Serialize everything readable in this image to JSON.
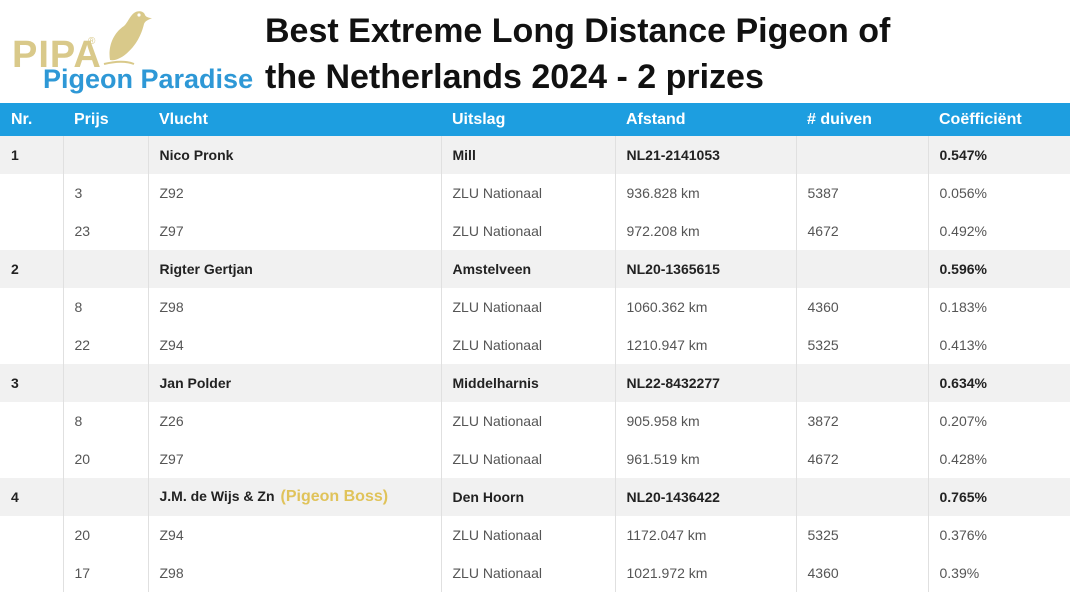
{
  "logo": {
    "brand": "PIPA",
    "registered": "®",
    "subtitle": "Pigeon Paradise"
  },
  "title": {
    "line1": "Best Extreme Long Distance Pigeon of",
    "line2": "the Netherlands 2024 - 2 prizes"
  },
  "colors": {
    "header_bg": "#1d9ee0",
    "brand_gold": "#d9c98a",
    "brand_blue": "#2e98d6",
    "highlight": "#e0c35a"
  },
  "table": {
    "headers": [
      "Nr.",
      "Prijs",
      "Vlucht",
      "Uitslag",
      "Afstand",
      "# duiven",
      "Coëfficiënt"
    ],
    "groups": [
      {
        "nr": "1",
        "name": "Nico Pronk",
        "tag": "",
        "place": "Mill",
        "ring": "NL21-2141053",
        "coef": "0.547%",
        "prizes": [
          {
            "prijs": "3",
            "vlucht": "Z92",
            "uitslag": "ZLU Nationaal",
            "afstand": "936.828 km",
            "duiven": "5387",
            "coef": "0.056%"
          },
          {
            "prijs": "23",
            "vlucht": "Z97",
            "uitslag": "ZLU Nationaal",
            "afstand": "972.208 km",
            "duiven": "4672",
            "coef": "0.492%"
          }
        ]
      },
      {
        "nr": "2",
        "name": "Rigter Gertjan",
        "tag": "",
        "place": "Amstelveen",
        "ring": "NL20-1365615",
        "coef": "0.596%",
        "prizes": [
          {
            "prijs": "8",
            "vlucht": "Z98",
            "uitslag": "ZLU Nationaal",
            "afstand": "1060.362 km",
            "duiven": "4360",
            "coef": "0.183%"
          },
          {
            "prijs": "22",
            "vlucht": "Z94",
            "uitslag": "ZLU Nationaal",
            "afstand": "1210.947 km",
            "duiven": "5325",
            "coef": "0.413%"
          }
        ]
      },
      {
        "nr": "3",
        "name": "Jan Polder",
        "tag": "",
        "place": "Middelharnis",
        "ring": "NL22-8432277",
        "coef": "0.634%",
        "prizes": [
          {
            "prijs": "8",
            "vlucht": "Z26",
            "uitslag": "ZLU Nationaal",
            "afstand": "905.958 km",
            "duiven": "3872",
            "coef": "0.207%"
          },
          {
            "prijs": "20",
            "vlucht": "Z97",
            "uitslag": "ZLU Nationaal",
            "afstand": "961.519 km",
            "duiven": "4672",
            "coef": "0.428%"
          }
        ]
      },
      {
        "nr": "4",
        "name": "J.M. de Wijs & Zn",
        "tag": "(Pigeon Boss)",
        "place": "Den Hoorn",
        "ring": "NL20-1436422",
        "coef": "0.765%",
        "prizes": [
          {
            "prijs": "20",
            "vlucht": "Z94",
            "uitslag": "ZLU Nationaal",
            "afstand": "1172.047 km",
            "duiven": "5325",
            "coef": "0.376%"
          },
          {
            "prijs": "17",
            "vlucht": "Z98",
            "uitslag": "ZLU Nationaal",
            "afstand": "1021.972 km",
            "duiven": "4360",
            "coef": "0.39%"
          }
        ]
      }
    ]
  }
}
